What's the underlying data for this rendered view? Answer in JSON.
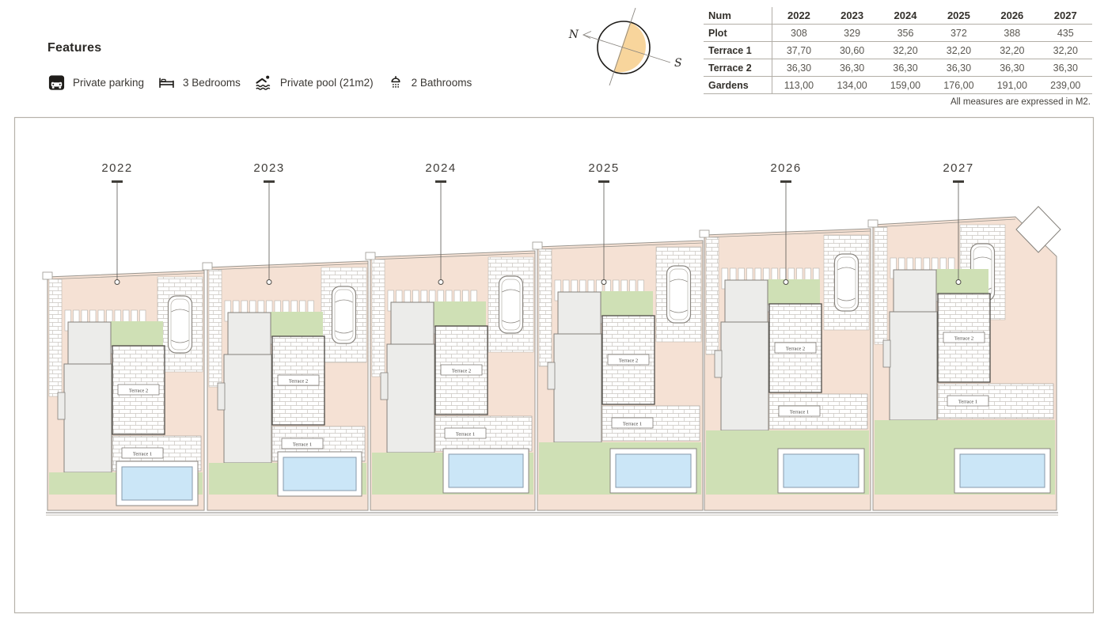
{
  "features": {
    "title": "Features",
    "items": [
      {
        "icon": "parking-icon",
        "label": "Private parking"
      },
      {
        "icon": "bed-icon",
        "label": "3 Bedrooms"
      },
      {
        "icon": "pool-icon",
        "label": "Private pool (21m2)"
      },
      {
        "icon": "bathroom-icon",
        "label": "2 Bathrooms"
      }
    ]
  },
  "compass": {
    "north": "N",
    "south": "S",
    "accent_color": "#f8d59c"
  },
  "table": {
    "header": [
      "Num",
      "2022",
      "2023",
      "2024",
      "2025",
      "2026",
      "2027"
    ],
    "rows": [
      {
        "label": "Plot",
        "values": [
          "308",
          "329",
          "356",
          "372",
          "388",
          "435"
        ]
      },
      {
        "label": "Terrace 1",
        "values": [
          "37,70",
          "30,60",
          "32,20",
          "32,20",
          "32,20",
          "32,20"
        ]
      },
      {
        "label": "Terrace 2",
        "values": [
          "36,30",
          "36,30",
          "36,30",
          "36,30",
          "36,30",
          "36,30"
        ]
      },
      {
        "label": "Gardens",
        "values": [
          "113,00",
          "134,00",
          "159,00",
          "176,00",
          "191,00",
          "239,00"
        ]
      }
    ],
    "footnote": "All measures are expressed in M2."
  },
  "plan": {
    "plot_years": [
      "2022",
      "2023",
      "2024",
      "2025",
      "2026",
      "2027"
    ],
    "terrace_labels": {
      "terrace1": "Terrace 1",
      "terrace2": "Terrace 2"
    },
    "colors": {
      "ground": "#f5e1d4",
      "garden": "#cfe0b5",
      "pool_water": "#cbe6f7",
      "pool_border": "#8799ab",
      "building": "#ececea",
      "building_border": "#85817b",
      "brick_line": "#c9c5bf",
      "outline": "#9a968f",
      "leader": "#403d39"
    }
  }
}
